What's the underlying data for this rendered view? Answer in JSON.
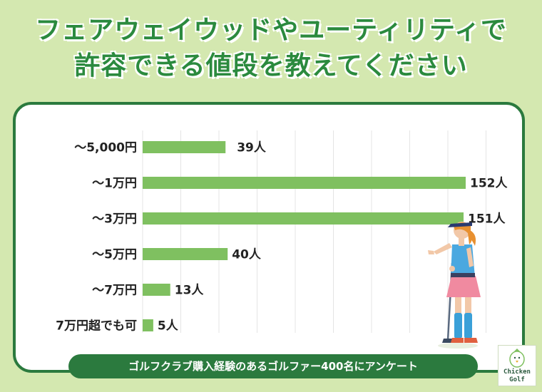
{
  "header": {
    "title_line1": "フェアウェイウッドやユーティリティで",
    "title_line2": "許容できる値段を教えてください"
  },
  "footer": {
    "caption": "ゴルフクラブ購入経験のあるゴルファー400名にアンケート"
  },
  "logo": {
    "line1": "Chicken",
    "line2": "Golf"
  },
  "colors": {
    "bar": "#7fc060",
    "accent": "#2b8a3e",
    "frame": "#2b7a3e",
    "background": "#d4e8b0"
  },
  "chart_data": {
    "type": "bar",
    "orientation": "horizontal",
    "categories": [
      "〜5,000円",
      "〜1万円",
      "〜3万円",
      "〜5万円",
      "〜7万円",
      "7万円超でも可"
    ],
    "values": [
      39,
      152,
      151,
      40,
      13,
      5
    ],
    "value_labels": [
      "39人",
      "152人",
      "151人",
      "40人",
      "13人",
      "5人"
    ],
    "xlim": [
      0,
      152
    ],
    "grid": true
  }
}
